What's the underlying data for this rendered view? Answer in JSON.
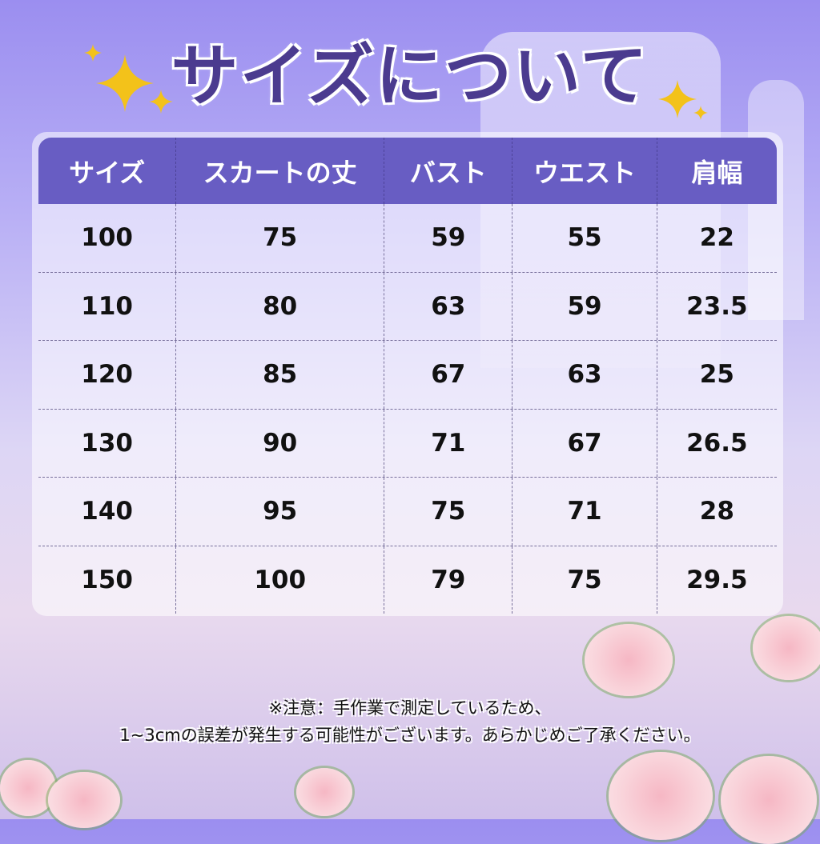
{
  "title": "サイズについて",
  "table": {
    "headers": [
      "サイズ",
      "スカートの丈",
      "バスト",
      "ウエスト",
      "肩幅"
    ],
    "rows": [
      [
        "100",
        "75",
        "59",
        "55",
        "22"
      ],
      [
        "110",
        "80",
        "63",
        "59",
        "23.5"
      ],
      [
        "120",
        "85",
        "67",
        "63",
        "25"
      ],
      [
        "130",
        "90",
        "71",
        "67",
        "26.5"
      ],
      [
        "140",
        "95",
        "75",
        "71",
        "28"
      ],
      [
        "150",
        "100",
        "79",
        "75",
        "29.5"
      ]
    ]
  },
  "note": {
    "line1": "※注意：手作業で測定しているため、",
    "line2": "1~3cmの誤差が発生する可能性がございます。あらかじめご了承ください。"
  },
  "colors": {
    "header": "#685dc3",
    "title": "#4b3b8f",
    "sparkle": "#f3c21a"
  },
  "icons": [
    "sparkle-icon",
    "rose-decoration"
  ]
}
